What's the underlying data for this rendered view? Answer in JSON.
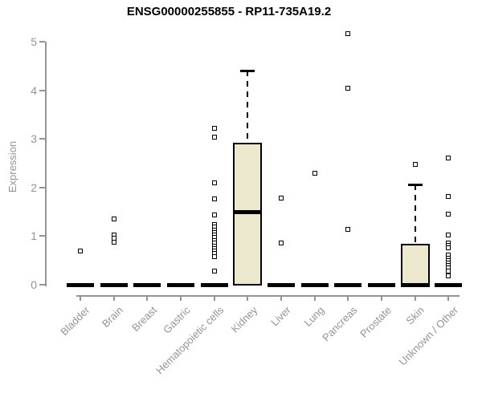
{
  "colors": {
    "box_fill": "#ece8cd",
    "axis_gray": "#949494",
    "ink": "#000000",
    "background": "#ffffff"
  },
  "chart_data": {
    "type": "box",
    "title": "ENSG00000255855 - RP11-735A19.2",
    "ylabel": "Expression",
    "xlabel": "",
    "ylim": [
      0,
      5
    ],
    "yticks": [
      0,
      1,
      2,
      3,
      4,
      5
    ],
    "grid": false,
    "legend": false,
    "categories": [
      "Bladder",
      "Brain",
      "Breast",
      "Gastric",
      "Hematopoietic cells",
      "Kidney",
      "Liver",
      "Lung",
      "Pancreas",
      "Prostate",
      "Skin",
      "Unknown / Other"
    ],
    "boxes": [
      {
        "category": "Bladder",
        "q1": 0,
        "median": 0,
        "q3": 0,
        "whisker_low": 0,
        "whisker_high": 0,
        "outliers": [
          0.7
        ]
      },
      {
        "category": "Brain",
        "q1": 0,
        "median": 0,
        "q3": 0,
        "whisker_low": 0,
        "whisker_high": 0,
        "outliers": [
          1.35,
          1.03,
          0.95,
          0.87
        ]
      },
      {
        "category": "Breast",
        "q1": 0,
        "median": 0,
        "q3": 0,
        "whisker_low": 0,
        "whisker_high": 0,
        "outliers": []
      },
      {
        "category": "Gastric",
        "q1": 0,
        "median": 0,
        "q3": 0,
        "whisker_low": 0,
        "whisker_high": 0,
        "outliers": []
      },
      {
        "category": "Hematopoietic cells",
        "q1": 0,
        "median": 0,
        "q3": 0,
        "whisker_low": 0,
        "whisker_high": 0,
        "outliers": [
          3.22,
          3.04,
          2.1,
          1.76,
          1.43,
          1.24,
          1.19,
          1.13,
          1.08,
          1.02,
          0.97,
          0.91,
          0.86,
          0.8,
          0.75,
          0.69,
          0.64,
          0.58,
          0.28
        ]
      },
      {
        "category": "Kidney",
        "q1": 0,
        "median": 1.5,
        "q3": 2.9,
        "whisker_low": 0,
        "whisker_high": 4.4,
        "outliers": []
      },
      {
        "category": "Liver",
        "q1": 0,
        "median": 0,
        "q3": 0,
        "whisker_low": 0,
        "whisker_high": 0,
        "outliers": [
          1.78,
          0.86
        ]
      },
      {
        "category": "Lung",
        "q1": 0,
        "median": 0,
        "q3": 0,
        "whisker_low": 0,
        "whisker_high": 0,
        "outliers": [
          2.29
        ]
      },
      {
        "category": "Pancreas",
        "q1": 0,
        "median": 0,
        "q3": 0,
        "whisker_low": 0,
        "whisker_high": 0,
        "outliers": [
          5.16,
          4.05,
          1.14
        ]
      },
      {
        "category": "Prostate",
        "q1": 0,
        "median": 0,
        "q3": 0,
        "whisker_low": 0,
        "whisker_high": 0,
        "outliers": []
      },
      {
        "category": "Skin",
        "q1": 0,
        "median": 0,
        "q3": 0.83,
        "whisker_low": 0,
        "whisker_high": 2.06,
        "outliers": [
          2.48
        ]
      },
      {
        "category": "Unknown / Other",
        "q1": 0,
        "median": 0,
        "q3": 0,
        "whisker_low": 0,
        "whisker_high": 0,
        "outliers": [
          2.61,
          1.82,
          1.46,
          1.03,
          0.86,
          0.81,
          0.76,
          0.61,
          0.55,
          0.5,
          0.45,
          0.4,
          0.34,
          0.28,
          0.18
        ]
      }
    ]
  }
}
